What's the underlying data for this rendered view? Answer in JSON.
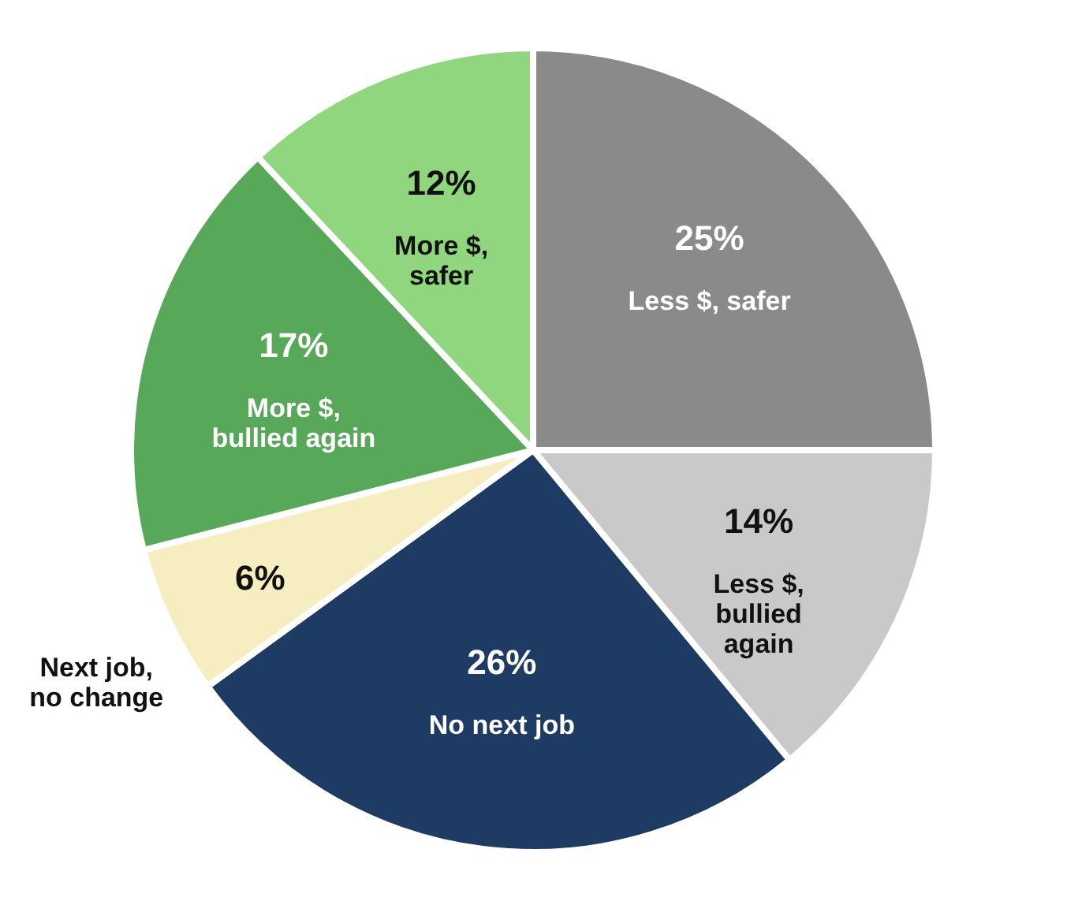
{
  "chart_data": {
    "type": "pie",
    "categories": [
      "Less $, safer",
      "Less $,\nbullied\nagain",
      "No next job",
      "Next job,\nno change",
      "More $,\nbullied again",
      "More $,\nsafer"
    ],
    "values": [
      25,
      14,
      26,
      6,
      17,
      12
    ],
    "value_labels": [
      "25%",
      "14%",
      "26%",
      "6%",
      "17%",
      "12%"
    ],
    "colors": [
      "#8a8a8a",
      "#c9c9c9",
      "#1d3b63",
      "#f6eec0",
      "#58a85a",
      "#8fd67e"
    ]
  }
}
